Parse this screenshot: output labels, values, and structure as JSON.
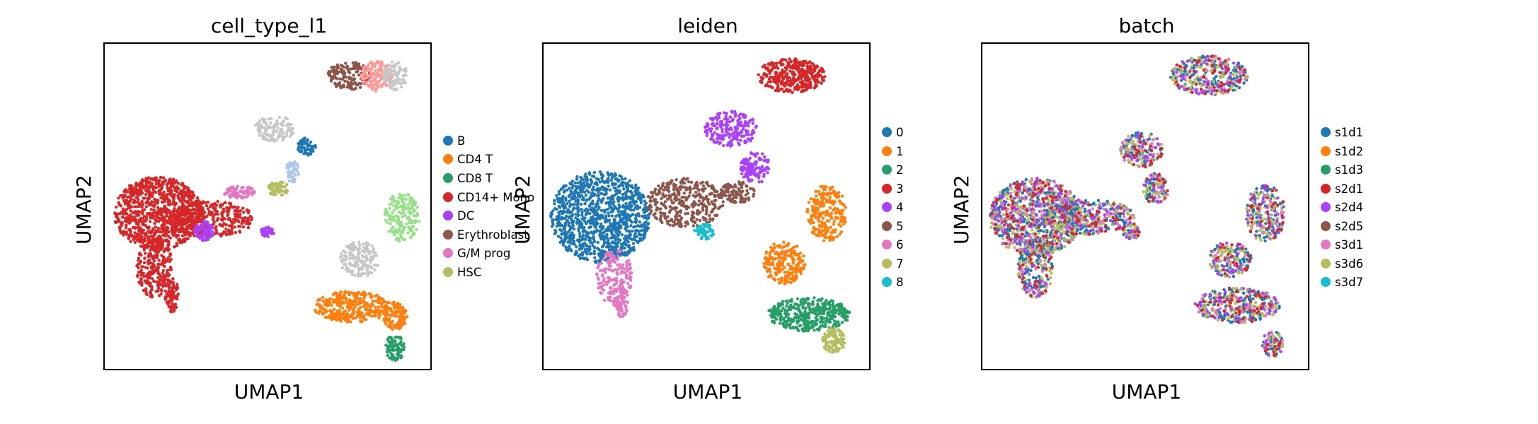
{
  "chart_data": [
    {
      "type": "scatter",
      "title": "cell_type_l1",
      "xlabel": "UMAP1",
      "ylabel": "UMAP2",
      "legend_position": "right",
      "categories": [
        {
          "label": "B",
          "color": "#1f77b4"
        },
        {
          "label": "CD4 T",
          "color": "#ff7f0e"
        },
        {
          "label": "CD8 T",
          "color": "#279e68"
        },
        {
          "label": "CD14+ Mono",
          "color": "#d62728"
        },
        {
          "label": "DC",
          "color": "#aa40fc"
        },
        {
          "label": "Erythroblast",
          "color": "#8c564b"
        },
        {
          "label": "G/M prog",
          "color": "#e377c2"
        },
        {
          "label": "HSC",
          "color": "#b5bd61"
        }
      ]
    },
    {
      "type": "scatter",
      "title": "leiden",
      "xlabel": "UMAP1",
      "ylabel": "UMAP2",
      "legend_position": "right",
      "categories": [
        {
          "label": "0",
          "color": "#1f77b4"
        },
        {
          "label": "1",
          "color": "#ff7f0e"
        },
        {
          "label": "2",
          "color": "#279e68"
        },
        {
          "label": "3",
          "color": "#d62728"
        },
        {
          "label": "4",
          "color": "#aa40fc"
        },
        {
          "label": "5",
          "color": "#8c564b"
        },
        {
          "label": "6",
          "color": "#e377c2"
        },
        {
          "label": "7",
          "color": "#b5bd61"
        },
        {
          "label": "8",
          "color": "#17becf"
        }
      ]
    },
    {
      "type": "scatter",
      "title": "batch",
      "xlabel": "UMAP1",
      "ylabel": "UMAP2",
      "legend_position": "right",
      "categories": [
        {
          "label": "s1d1",
          "color": "#1f77b4"
        },
        {
          "label": "s1d2",
          "color": "#ff7f0e"
        },
        {
          "label": "s1d3",
          "color": "#279e68"
        },
        {
          "label": "s2d1",
          "color": "#d62728"
        },
        {
          "label": "s2d4",
          "color": "#aa40fc"
        },
        {
          "label": "s2d5",
          "color": "#8c564b"
        },
        {
          "label": "s3d1",
          "color": "#e377c2"
        },
        {
          "label": "s3d6",
          "color": "#b5bd61"
        },
        {
          "label": "s3d7",
          "color": "#17becf"
        }
      ]
    }
  ]
}
